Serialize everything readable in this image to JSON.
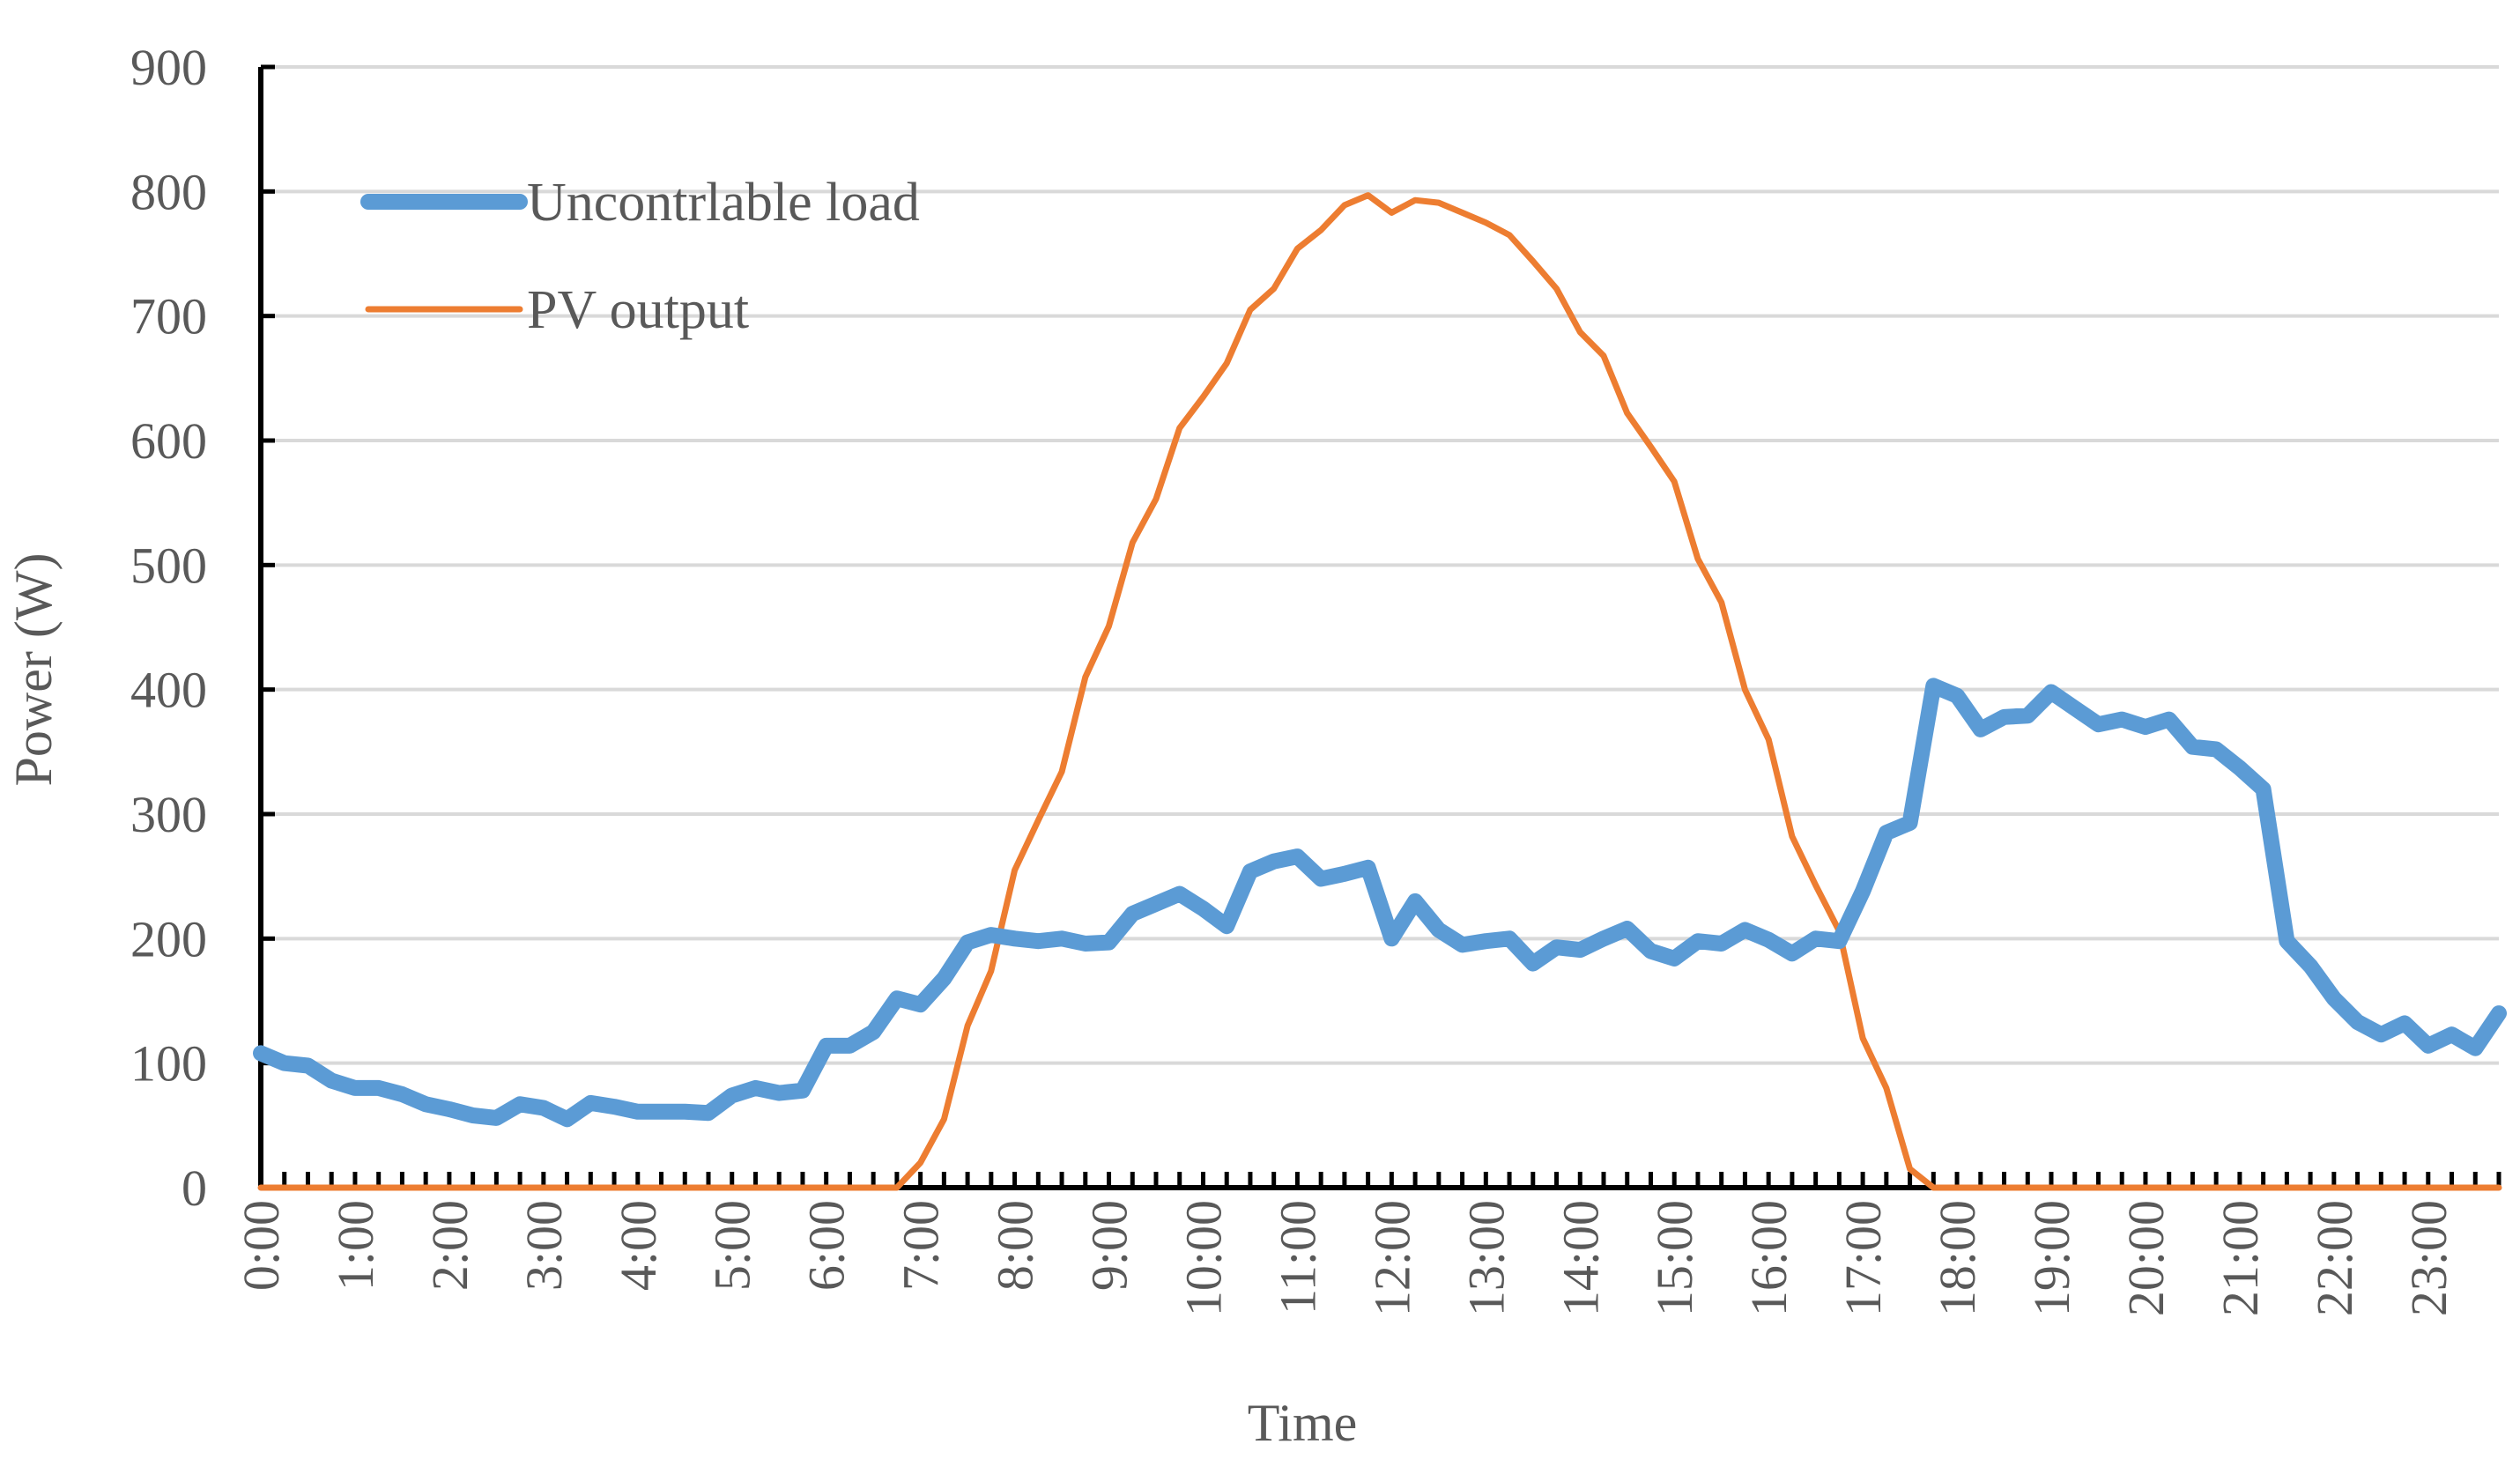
{
  "chart_data": {
    "type": "line",
    "title": "",
    "xlabel": "Time",
    "ylabel": "Power (W)",
    "ylim": [
      0,
      900
    ],
    "yticks": [
      0,
      100,
      200,
      300,
      400,
      500,
      600,
      700,
      800,
      900
    ],
    "grid": true,
    "legend_position": "top-left",
    "x_tick_labels": [
      "0:00",
      "1:00",
      "2:00",
      "3:00",
      "4:00",
      "5:00",
      "6:00",
      "7:00",
      "8:00",
      "9:00",
      "10:00",
      "11:00",
      "12:00",
      "13:00",
      "14:00",
      "15:00",
      "16:00",
      "17:00",
      "18:00",
      "19:00",
      "20:00",
      "21:00",
      "22:00",
      "23:00"
    ],
    "x_points_per_hour": 4,
    "series": [
      {
        "name": "Uncontrlable load",
        "color": "#5B9BD5",
        "values": [
          108,
          100,
          98,
          86,
          80,
          80,
          75,
          67,
          63,
          58,
          56,
          67,
          64,
          55,
          68,
          65,
          61,
          61,
          61,
          60,
          74,
          80,
          76,
          78,
          114,
          114,
          125,
          152,
          147,
          168,
          197,
          203,
          200,
          198,
          200,
          196,
          197,
          220,
          228,
          236,
          224,
          210,
          254,
          262,
          266,
          248,
          252,
          257,
          200,
          230,
          207,
          195,
          198,
          200,
          180,
          193,
          191,
          200,
          208,
          190,
          184,
          198,
          196,
          207,
          199,
          188,
          200,
          198,
          238,
          285,
          293,
          403,
          395,
          368,
          378,
          379,
          398,
          385,
          372,
          376,
          370,
          376,
          354,
          352,
          337,
          320,
          198,
          178,
          152,
          133,
          123,
          132,
          114,
          123,
          112,
          140
        ]
      },
      {
        "name": "PV output",
        "color": "#ED7D31",
        "values": [
          0,
          0,
          0,
          0,
          0,
          0,
          0,
          0,
          0,
          0,
          0,
          0,
          0,
          0,
          0,
          0,
          0,
          0,
          0,
          0,
          0,
          0,
          0,
          0,
          0,
          0,
          0,
          0,
          20,
          55,
          130,
          174,
          255,
          295,
          334,
          410,
          451,
          518,
          553,
          610,
          635,
          662,
          705,
          722,
          754,
          769,
          789,
          797,
          783,
          793,
          791,
          783,
          775,
          765,
          744,
          722,
          687,
          668,
          622,
          595,
          567,
          505,
          470,
          400,
          360,
          282,
          243,
          206,
          120,
          80,
          15,
          0,
          0,
          0,
          0,
          0,
          0,
          0,
          0,
          0,
          0,
          0,
          0,
          0,
          0,
          0,
          0,
          0,
          0,
          0,
          0,
          0,
          0,
          0,
          0,
          0
        ]
      }
    ]
  }
}
